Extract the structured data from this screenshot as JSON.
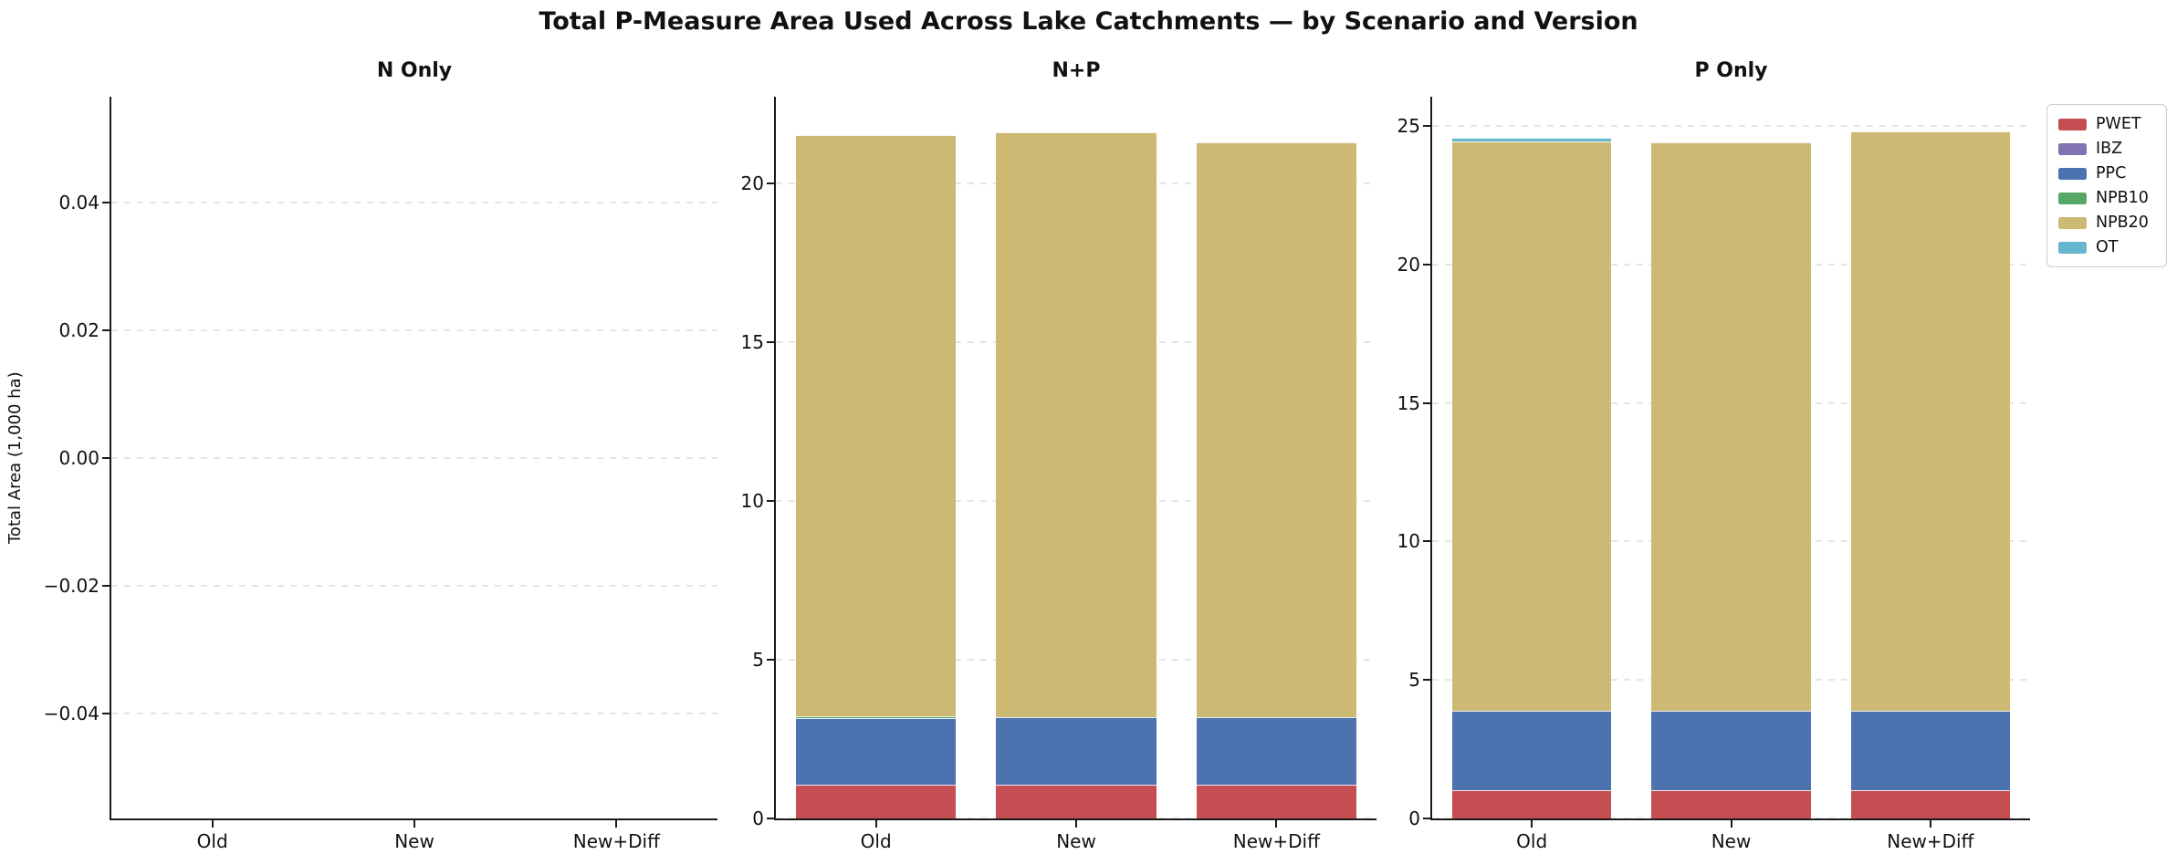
{
  "figure": {
    "title": "Total P-Measure Area Used Across Lake Catchments — by Scenario and Version",
    "ylabel": "Total Area (1,000 ha)"
  },
  "legend": {
    "position": "top-right",
    "items": [
      {
        "label": "PWET",
        "color": "#c44e52"
      },
      {
        "label": "IBZ",
        "color": "#8172b2"
      },
      {
        "label": "PPC",
        "color": "#4c72b0"
      },
      {
        "label": "NPB10",
        "color": "#55a868"
      },
      {
        "label": "NPB20",
        "color": "#ccb974"
      },
      {
        "label": "OT",
        "color": "#64b5cd"
      }
    ]
  },
  "chart_data": [
    {
      "type": "bar",
      "stacked": true,
      "title": "N Only",
      "categories": [
        "Old",
        "New",
        "New+Diff"
      ],
      "series": [
        {
          "name": "PWET",
          "values": [
            0,
            0,
            0
          ]
        },
        {
          "name": "IBZ",
          "values": [
            0,
            0,
            0
          ]
        },
        {
          "name": "PPC",
          "values": [
            0,
            0,
            0
          ]
        },
        {
          "name": "NPB10",
          "values": [
            0,
            0,
            0
          ]
        },
        {
          "name": "NPB20",
          "values": [
            0,
            0,
            0
          ]
        },
        {
          "name": "OT",
          "values": [
            0,
            0,
            0
          ]
        }
      ],
      "ylim": [
        -0.0565,
        0.0565
      ],
      "yticks": [
        -0.04,
        -0.02,
        0.0,
        0.02,
        0.04
      ],
      "yticklabels": [
        "−0.04",
        "−0.02",
        "0.00",
        "0.02",
        "0.04"
      ],
      "grid": "dashed-horizontal"
    },
    {
      "type": "bar",
      "stacked": true,
      "title": "N+P",
      "categories": [
        "Old",
        "New",
        "New+Diff"
      ],
      "series": [
        {
          "name": "PWET",
          "values": [
            1.06,
            1.05,
            1.06
          ]
        },
        {
          "name": "IBZ",
          "values": [
            0,
            0,
            0
          ]
        },
        {
          "name": "PPC",
          "values": [
            2.09,
            2.15,
            2.14
          ]
        },
        {
          "name": "NPB10",
          "values": [
            0.06,
            0,
            0
          ]
        },
        {
          "name": "NPB20",
          "values": [
            18.31,
            18.41,
            18.09
          ]
        },
        {
          "name": "OT",
          "values": [
            0,
            0,
            0
          ]
        }
      ],
      "totals": [
        21.52,
        21.61,
        21.29
      ],
      "ylim": [
        0,
        22.73
      ],
      "yticks": [
        0,
        5,
        10,
        15,
        20
      ],
      "yticklabels": [
        "0",
        "5",
        "10",
        "15",
        "20"
      ],
      "grid": "dashed-horizontal"
    },
    {
      "type": "bar",
      "stacked": true,
      "title": "P Only",
      "categories": [
        "Old",
        "New",
        "New+Diff"
      ],
      "series": [
        {
          "name": "PWET",
          "values": [
            1.03,
            1.03,
            1.03
          ]
        },
        {
          "name": "IBZ",
          "values": [
            0,
            0,
            0
          ]
        },
        {
          "name": "PPC",
          "values": [
            2.87,
            2.87,
            2.87
          ]
        },
        {
          "name": "NPB10",
          "values": [
            0,
            0,
            0
          ]
        },
        {
          "name": "NPB20",
          "values": [
            20.55,
            20.5,
            20.91
          ]
        },
        {
          "name": "OT",
          "values": [
            0.12,
            0,
            0
          ]
        }
      ],
      "totals": [
        24.57,
        24.4,
        24.81
      ],
      "ylim": [
        0,
        26.05
      ],
      "yticks": [
        0,
        5,
        10,
        15,
        20,
        25
      ],
      "yticklabels": [
        "0",
        "5",
        "10",
        "15",
        "20",
        "25"
      ],
      "grid": "dashed-horizontal"
    }
  ]
}
